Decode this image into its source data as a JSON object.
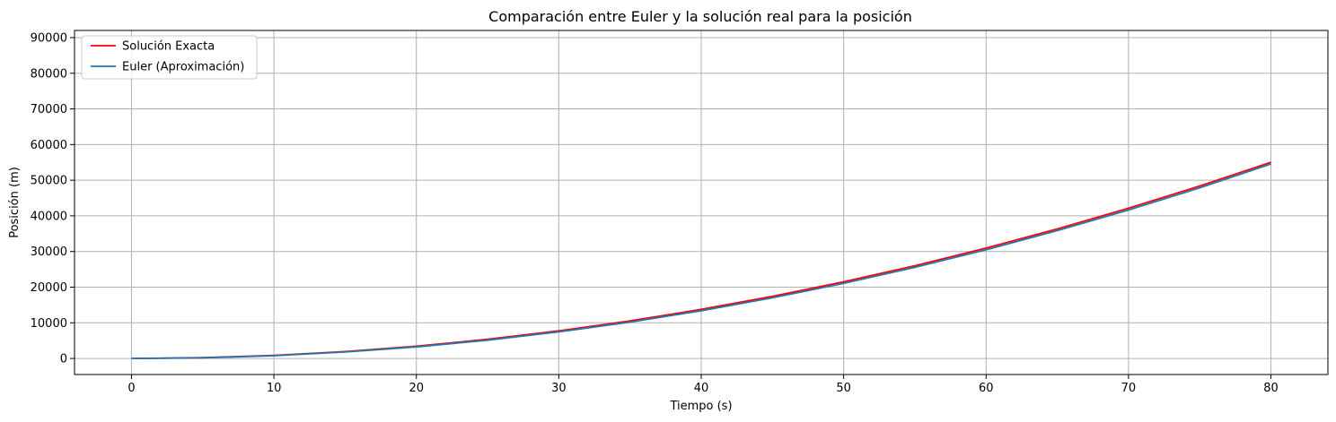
{
  "chart_data": {
    "type": "line",
    "title": "Comparación entre Euler y la solución real para la posición",
    "xlabel": "Tiempo (s)",
    "ylabel": "Posición (m)",
    "xlim": [
      -4,
      84
    ],
    "ylim": [
      -4500,
      92000
    ],
    "x_ticks": [
      0,
      10,
      20,
      30,
      40,
      50,
      60,
      70,
      80
    ],
    "y_ticks": [
      0,
      10000,
      20000,
      30000,
      40000,
      50000,
      60000,
      70000,
      80000,
      90000
    ],
    "grid": true,
    "legend_position": "top-left",
    "series": [
      {
        "name": "Solución Exacta",
        "color": "#ff0000",
        "x": [
          0,
          5,
          10,
          15,
          20,
          25,
          30,
          35,
          40,
          45,
          50,
          55,
          60,
          65,
          70,
          75,
          80
        ],
        "y": [
          0,
          215,
          860,
          1935,
          3440,
          5375,
          7740,
          10535,
          13760,
          17415,
          21500,
          26015,
          30960,
          36335,
          42140,
          48375,
          55040
        ]
      },
      {
        "name": "Euler (Aproximación)",
        "color": "#1f77b4",
        "x": [
          0,
          5,
          10,
          15,
          20,
          25,
          30,
          35,
          40,
          45,
          50,
          55,
          60,
          65,
          70,
          75,
          80
        ],
        "y": [
          0,
          170,
          770,
          1800,
          3250,
          5130,
          7450,
          10200,
          13390,
          17010,
          21070,
          25560,
          30490,
          35850,
          41650,
          47880,
          54550
        ]
      }
    ]
  }
}
